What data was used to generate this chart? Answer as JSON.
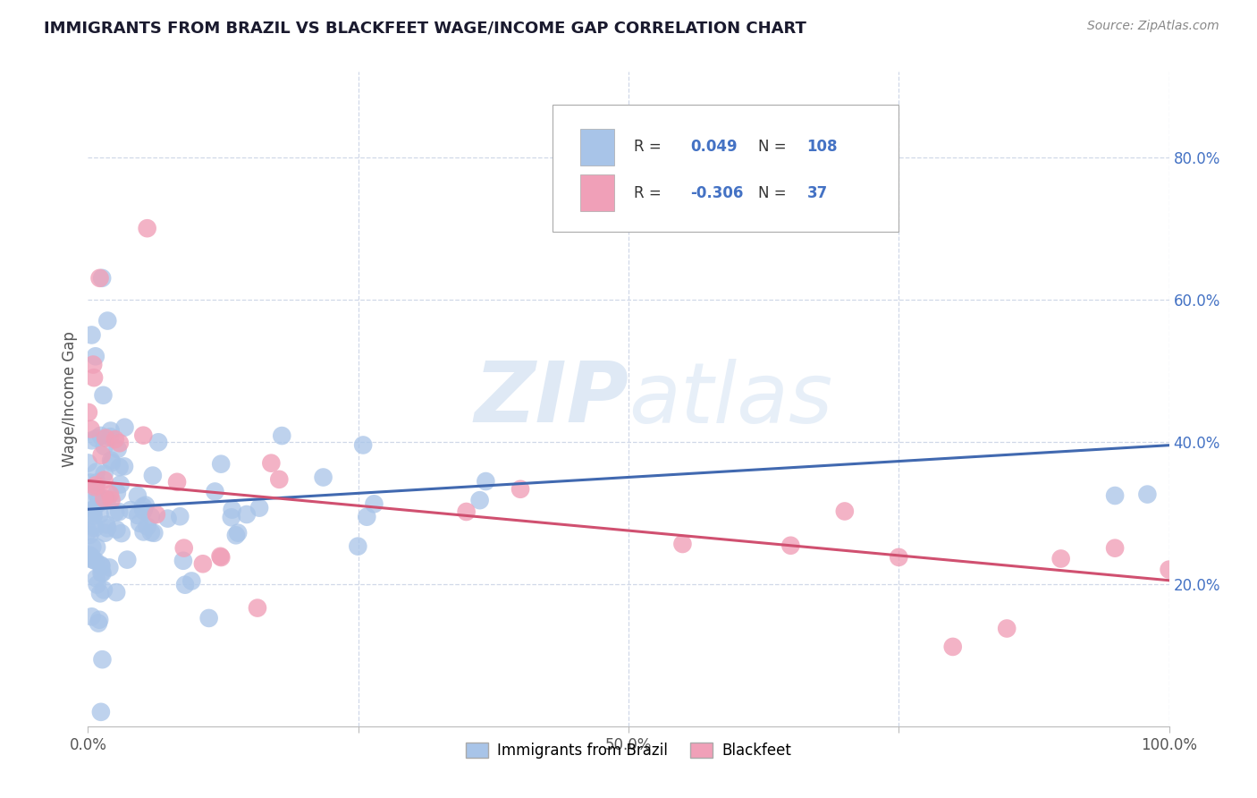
{
  "title": "IMMIGRANTS FROM BRAZIL VS BLACKFEET WAGE/INCOME GAP CORRELATION CHART",
  "source": "Source: ZipAtlas.com",
  "ylabel": "Wage/Income Gap",
  "xlim": [
    0,
    1.0
  ],
  "ylim": [
    0.0,
    0.92
  ],
  "ytick_positions": [
    0.2,
    0.4,
    0.6,
    0.8
  ],
  "ytick_labels": [
    "20.0%",
    "40.0%",
    "60.0%",
    "80.0%"
  ],
  "xtick_positions": [
    0.0,
    0.25,
    0.5,
    0.75,
    1.0
  ],
  "xticklabels": [
    "0.0%",
    "",
    "50.0%",
    "",
    "100.0%"
  ],
  "watermark_zip": "ZIP",
  "watermark_atlas": "atlas",
  "brazil_R": 0.049,
  "brazil_N": 108,
  "blackfeet_R": -0.306,
  "blackfeet_N": 37,
  "brazil_color": "#a8c4e8",
  "blackfeet_color": "#f0a0b8",
  "brazil_line_color": "#4169b0",
  "blackfeet_line_color": "#d05070",
  "background_color": "#ffffff",
  "grid_color": "#d0d8e8",
  "title_color": "#1a1a2e",
  "brazil_line_x": [
    0.0,
    1.0
  ],
  "brazil_line_y": [
    0.305,
    0.395
  ],
  "blackfeet_line_x": [
    0.0,
    1.0
  ],
  "blackfeet_line_y": [
    0.345,
    0.205
  ],
  "right_tick_color": "#4472c4",
  "legend_R1": "R =",
  "legend_V1": "0.049",
  "legend_N1": "N =",
  "legend_NV1": "108",
  "legend_R2": "R =",
  "legend_V2": "-0.306",
  "legend_N2": "N =",
  "legend_NV2": "37",
  "bottom_legend_brazil": "Immigrants from Brazil",
  "bottom_legend_blackfeet": "Blackfeet"
}
